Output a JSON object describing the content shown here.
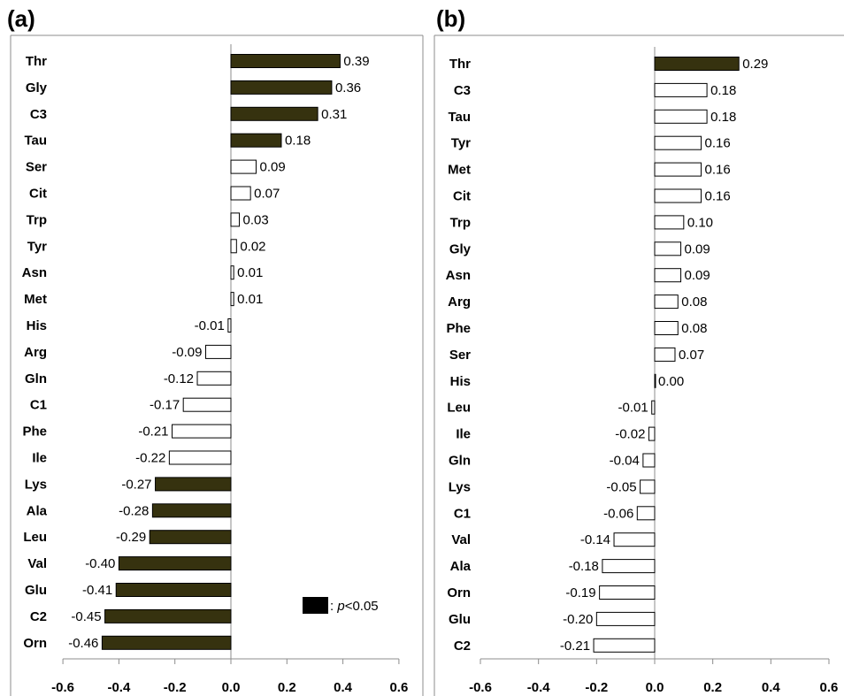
{
  "legend": {
    "symbol_color": "#000000",
    "prefix": ": ",
    "p": "p",
    "threshold": "<0.05"
  },
  "colors": {
    "significant": "#36320f",
    "nonsignificant": "#ffffff",
    "border": "#000000",
    "frame": "#8c8c8c"
  },
  "chart_data": [
    {
      "type": "bar",
      "orientation": "horizontal",
      "panel_label": "(a)",
      "xlim": [
        -0.6,
        0.6
      ],
      "xticks": [
        -0.6,
        -0.4,
        -0.2,
        0.0,
        0.2,
        0.4,
        0.6
      ],
      "xtick_labels": [
        "-0.6",
        "-0.4",
        "-0.2",
        "0.0",
        "0.2",
        "0.4",
        "0.6"
      ],
      "grid": false,
      "legend_position": "bottom-right",
      "categories": [
        "Thr",
        "Gly",
        "C3",
        "Tau",
        "Ser",
        "Cit",
        "Trp",
        "Tyr",
        "Asn",
        "Met",
        "His",
        "Arg",
        "Gln",
        "C1",
        "Phe",
        "Ile",
        "Lys",
        "Ala",
        "Leu",
        "Val",
        "Glu",
        "C2",
        "Orn"
      ],
      "values": [
        0.39,
        0.36,
        0.31,
        0.18,
        0.09,
        0.07,
        0.03,
        0.02,
        0.01,
        0.01,
        -0.01,
        -0.09,
        -0.12,
        -0.17,
        -0.21,
        -0.22,
        -0.27,
        -0.28,
        -0.29,
        -0.4,
        -0.41,
        -0.45,
        -0.46
      ],
      "value_labels": [
        "0.39",
        "0.36",
        "0.31",
        "0.18",
        "0.09",
        "0.07",
        "0.03",
        "0.02",
        "0.01",
        "0.01",
        "-0.01",
        "-0.09",
        "-0.12",
        "-0.17",
        "-0.21",
        "-0.22",
        "-0.27",
        "-0.28",
        "-0.29",
        "-0.40",
        "-0.41",
        "-0.45",
        "-0.46"
      ],
      "significant": [
        true,
        true,
        true,
        true,
        false,
        false,
        false,
        false,
        false,
        false,
        false,
        false,
        false,
        false,
        false,
        false,
        true,
        true,
        true,
        true,
        true,
        true,
        true
      ]
    },
    {
      "type": "bar",
      "orientation": "horizontal",
      "panel_label": "(b)",
      "xlim": [
        -0.6,
        0.6
      ],
      "xticks": [
        -0.6,
        -0.4,
        -0.2,
        0.0,
        0.2,
        0.4,
        0.6
      ],
      "xtick_labels": [
        "-0.6",
        "-0.4",
        "-0.2",
        "0.0",
        "0.2",
        "0.4",
        "0.6"
      ],
      "grid": false,
      "categories": [
        "Thr",
        "C3",
        "Tau",
        "Tyr",
        "Met",
        "Cit",
        "Trp",
        "Gly",
        "Asn",
        "Arg",
        "Phe",
        "Ser",
        "His",
        "Leu",
        "Ile",
        "Gln",
        "Lys",
        "C1",
        "Val",
        "Ala",
        "Orn",
        "Glu",
        "C2"
      ],
      "values": [
        0.29,
        0.18,
        0.18,
        0.16,
        0.16,
        0.16,
        0.1,
        0.09,
        0.09,
        0.08,
        0.08,
        0.07,
        0.0,
        -0.01,
        -0.02,
        -0.04,
        -0.05,
        -0.06,
        -0.14,
        -0.18,
        -0.19,
        -0.2,
        -0.21
      ],
      "value_labels": [
        "0.29",
        "0.18",
        "0.18",
        "0.16",
        "0.16",
        "0.16",
        "0.10",
        "0.09",
        "0.09",
        "0.08",
        "0.08",
        "0.07",
        "0.00",
        "-0.01",
        "-0.02",
        "-0.04",
        "-0.05",
        "-0.06",
        "-0.14",
        "-0.18",
        "-0.19",
        "-0.20",
        "-0.21"
      ],
      "significant": [
        true,
        false,
        false,
        false,
        false,
        false,
        false,
        false,
        false,
        false,
        false,
        false,
        false,
        false,
        false,
        false,
        false,
        false,
        false,
        false,
        false,
        false,
        false
      ]
    }
  ]
}
